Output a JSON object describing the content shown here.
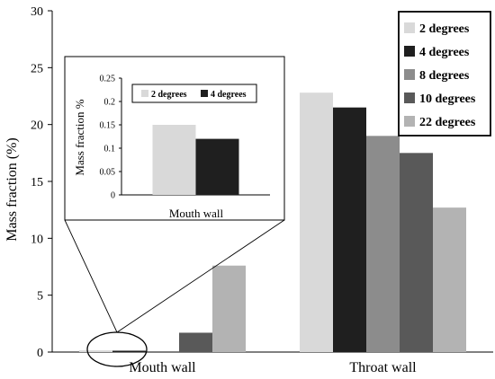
{
  "chart_data": [
    {
      "type": "bar",
      "ylabel": "Mass fraction (%)",
      "ylim": [
        0,
        30
      ],
      "yticks": [
        "0",
        "5",
        "10",
        "15",
        "20",
        "25",
        "30"
      ],
      "categories": [
        "Mouth wall",
        "Throat wall"
      ],
      "series": [
        {
          "name": "2 degrees",
          "color": "#d9d9d9",
          "values": [
            0.15,
            22.8
          ]
        },
        {
          "name": "4 degrees",
          "color": "#1f1f1f",
          "values": [
            0.12,
            21.5
          ]
        },
        {
          "name": "8 degrees",
          "color": "#8c8c8c",
          "values": [
            0.0,
            19.0
          ]
        },
        {
          "name": "10 degrees",
          "color": "#595959",
          "values": [
            1.7,
            17.5
          ]
        },
        {
          "name": "22 degrees",
          "color": "#b3b3b3",
          "values": [
            7.6,
            12.7
          ]
        }
      ],
      "legend_position": "top-right",
      "grid": false
    },
    {
      "type": "bar",
      "inset": true,
      "ylabel": "Mass fraction %",
      "ylim": [
        0,
        0.25
      ],
      "yticks": [
        "0",
        "0.05",
        "0.1",
        "0.15",
        "0.2",
        "0.25"
      ],
      "categories": [
        "Mouth wall"
      ],
      "series": [
        {
          "name": "2 degrees",
          "color": "#d9d9d9",
          "values": [
            0.15
          ]
        },
        {
          "name": "4 degrees",
          "color": "#1f1f1f",
          "values": [
            0.12
          ]
        }
      ],
      "legend_position": "top",
      "grid": false
    }
  ]
}
